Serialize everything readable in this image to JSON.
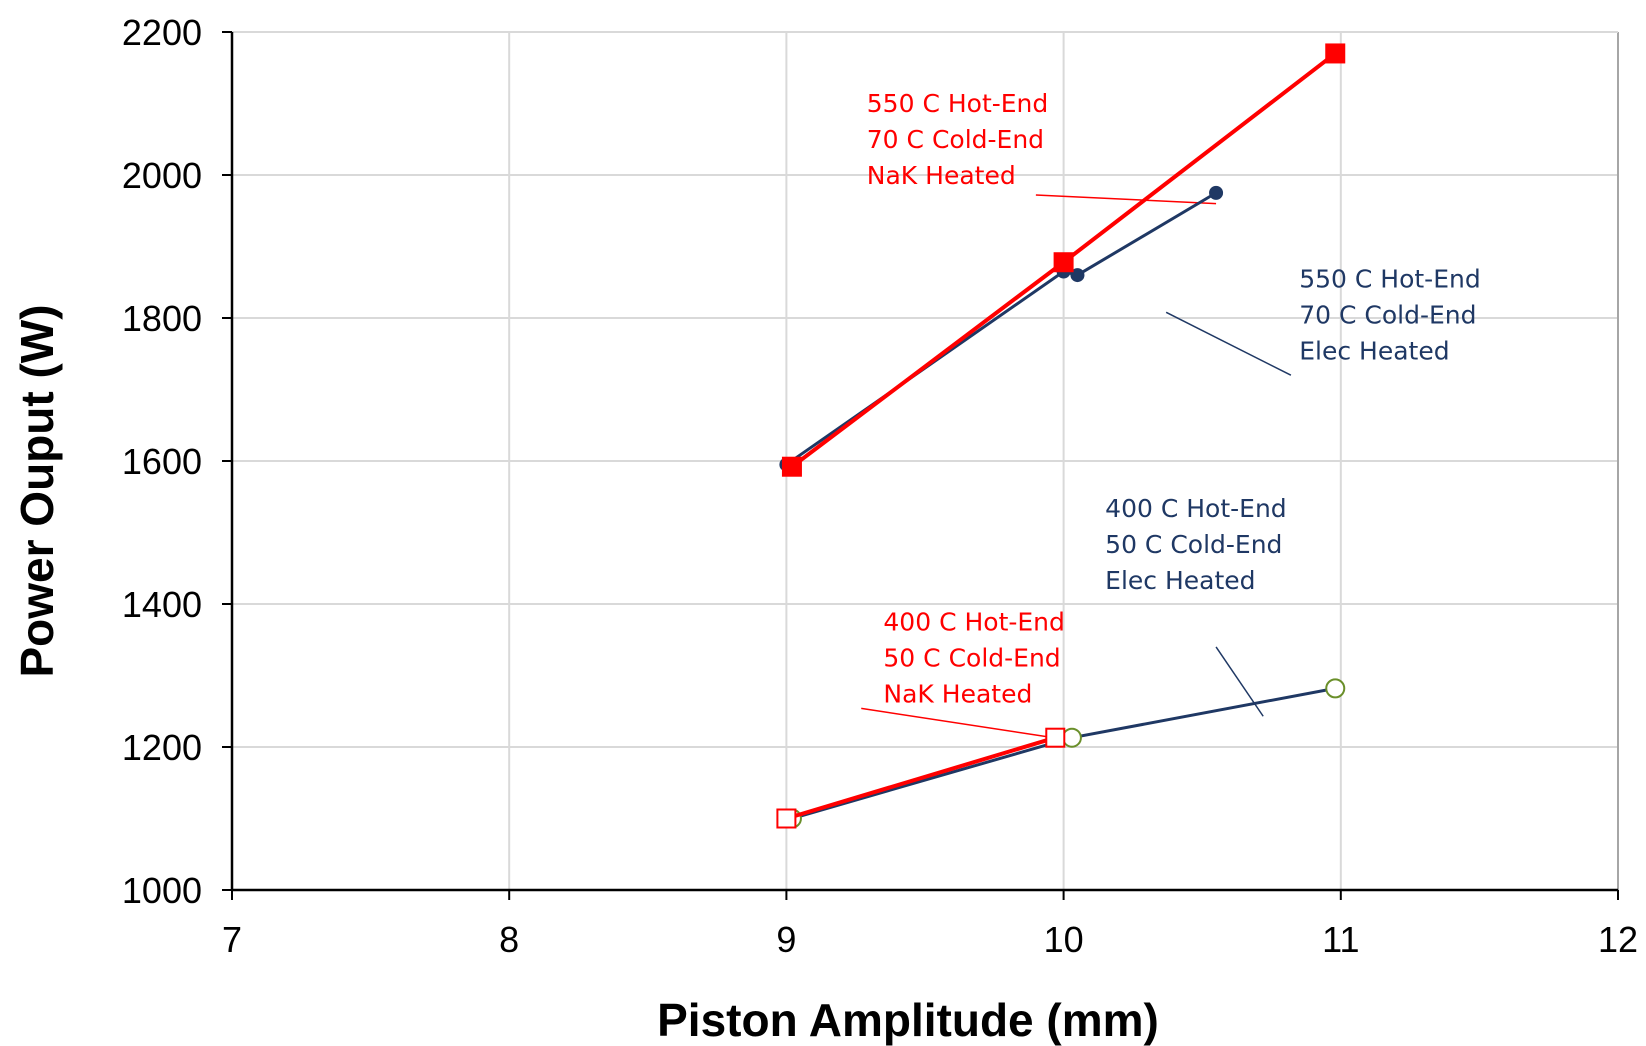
{
  "chart_data": {
    "type": "line",
    "xlabel": "Piston Amplitude (mm)",
    "ylabel": "Power Ouput (W)",
    "xlim": [
      7,
      12
    ],
    "ylim": [
      1000,
      2200
    ],
    "x_ticks": [
      "7",
      "8",
      "9",
      "10",
      "11",
      "12"
    ],
    "y_ticks": [
      "1000",
      "1200",
      "1400",
      "1600",
      "1800",
      "2000",
      "2200"
    ],
    "grid": true,
    "legend": "none",
    "series": [
      {
        "x": [
          9.0,
          10.0,
          10.05,
          10.55
        ],
        "y": [
          1595,
          1865,
          1860,
          1975
        ],
        "color": "#1f3864",
        "marker": "filled-circle"
      },
      {
        "x": [
          9.02,
          10.0,
          10.98
        ],
        "y": [
          1592,
          1878,
          2170
        ],
        "color": "#ff0000",
        "marker": "filled-square"
      },
      {
        "x": [
          9.02,
          10.03,
          10.98
        ],
        "y": [
          1100,
          1213,
          1282
        ],
        "color": "#1f3864",
        "marker": "open-circle",
        "marker_color": "#6a8f2a"
      },
      {
        "x": [
          9.0,
          9.97
        ],
        "y": [
          1100,
          1213
        ],
        "color": "#ff0000",
        "marker": "open-square"
      }
    ],
    "annotations": [
      {
        "lines": [
          "550 C Hot-End",
          "70 C Cold-End",
          "NaK Heated"
        ],
        "color": "#ff0000"
      },
      {
        "lines": [
          "550 C Hot-End",
          "70 C Cold-End",
          "Elec Heated"
        ],
        "color": "#1f3864"
      },
      {
        "lines": [
          "400 C Hot-End",
          "50 C Cold-End",
          "Elec Heated"
        ],
        "color": "#1f3864"
      },
      {
        "lines": [
          "400 C Hot-End",
          "50 C Cold-End",
          "NaK Heated"
        ],
        "color": "#ff0000"
      }
    ]
  }
}
